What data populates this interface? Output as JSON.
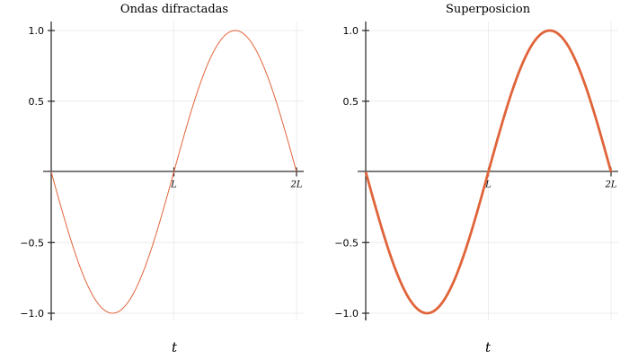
{
  "chart_data": [
    {
      "type": "line",
      "title": "Ondas difractadas",
      "xlabel": "t",
      "ylabel": "",
      "xlim": [
        0,
        2
      ],
      "ylim": [
        -1,
        1
      ],
      "x_ticks": [
        {
          "value": 1,
          "label": "L"
        },
        {
          "value": 2,
          "label": "2L"
        }
      ],
      "y_ticks": [
        {
          "value": -1.0,
          "label": "−1.0"
        },
        {
          "value": -0.5,
          "label": "−0.5"
        },
        {
          "value": 0.5,
          "label": "0.5"
        },
        {
          "value": 1.0,
          "label": "1.0"
        }
      ],
      "grid": true,
      "series": [
        {
          "function": "-sin(pi*x)",
          "color": "#e0643a",
          "x": [
            0,
            0.25,
            0.5,
            0.75,
            1,
            1.25,
            1.5,
            1.75,
            2
          ],
          "values": [
            0,
            -0.707,
            -1,
            -0.707,
            0,
            0.707,
            1,
            0.707,
            0
          ]
        }
      ]
    },
    {
      "type": "line",
      "title": "Superposicion",
      "xlabel": "t",
      "ylabel": "",
      "xlim": [
        0,
        2
      ],
      "ylim": [
        -1,
        1
      ],
      "x_ticks": [
        {
          "value": 1,
          "label": "L"
        },
        {
          "value": 2,
          "label": "2L"
        }
      ],
      "y_ticks": [
        {
          "value": -1.0,
          "label": "−1.0"
        },
        {
          "value": -0.5,
          "label": "−0.5"
        },
        {
          "value": 0.5,
          "label": "0.5"
        },
        {
          "value": 1.0,
          "label": "1.0"
        }
      ],
      "grid": true,
      "series": [
        {
          "function": "-sin(pi*x)",
          "color": "#e0643a",
          "x": [
            0,
            0.25,
            0.5,
            0.75,
            1,
            1.25,
            1.5,
            1.75,
            2
          ],
          "values": [
            0,
            -0.707,
            -1,
            -0.707,
            0,
            0.707,
            1,
            0.707,
            0
          ]
        }
      ]
    }
  ]
}
